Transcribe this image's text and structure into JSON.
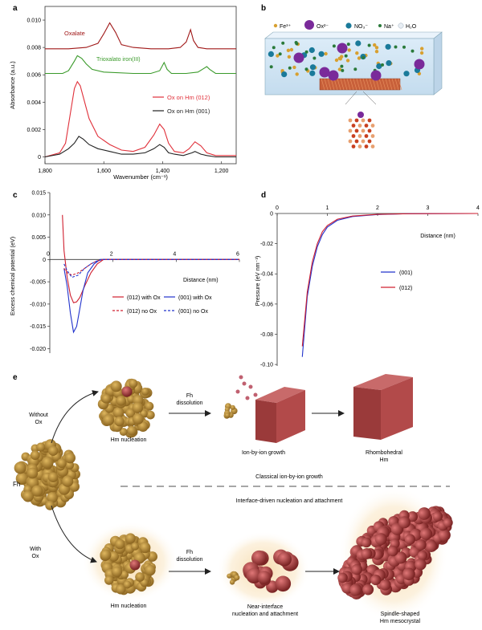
{
  "panel_labels": {
    "a": "a",
    "b": "b",
    "c": "c",
    "d": "d",
    "e": "e"
  },
  "colors": {
    "oxalate": "#a01818",
    "trioxalato": "#3a9a2a",
    "ox012": "#e0303a",
    "ox001": "#222222",
    "blue": "#2233cc",
    "red": "#d02030",
    "fh": "#b8902e",
    "hm": "#a84848",
    "water": "#d8e8f4"
  },
  "chart_data": [
    {
      "type": "line",
      "panel": "a",
      "xlabel": "Wavenumber (cm⁻¹)",
      "ylabel": "Absorbance (a.u.)",
      "xlim": [
        1800,
        1150
      ],
      "ylim": [
        -0.0005,
        0.011
      ],
      "xticks": [
        "1,800",
        "1,600",
        "1,400",
        "1,200"
      ],
      "xtick_values": [
        1800,
        1600,
        1400,
        1200
      ],
      "yticks": [
        "0",
        "0.002",
        "0.004",
        "0.006",
        "0.008",
        "0.010"
      ],
      "ytick_values": [
        0,
        0.002,
        0.004,
        0.006,
        0.008,
        0.01
      ],
      "series": [
        {
          "name": "Oxalate",
          "label": "Oxalate",
          "color": "#a01818",
          "x": [
            1800,
            1720,
            1660,
            1620,
            1600,
            1580,
            1560,
            1540,
            1500,
            1440,
            1380,
            1340,
            1320,
            1305,
            1295,
            1280,
            1250,
            1200,
            1150
          ],
          "y": [
            0.0079,
            0.0079,
            0.008,
            0.0083,
            0.009,
            0.0098,
            0.0091,
            0.0082,
            0.008,
            0.0079,
            0.0079,
            0.008,
            0.0084,
            0.0093,
            0.0085,
            0.008,
            0.0079,
            0.0079,
            0.0079
          ]
        },
        {
          "name": "Trioxalato iron(III)",
          "label": "Trioxalato iron(III)",
          "color": "#3a9a2a",
          "x": [
            1800,
            1740,
            1720,
            1700,
            1690,
            1675,
            1660,
            1640,
            1600,
            1500,
            1440,
            1410,
            1395,
            1385,
            1370,
            1320,
            1280,
            1250,
            1240,
            1220,
            1150
          ],
          "y": [
            0.0061,
            0.0061,
            0.0063,
            0.007,
            0.0074,
            0.0072,
            0.0068,
            0.0064,
            0.0062,
            0.0061,
            0.0061,
            0.0063,
            0.0069,
            0.0064,
            0.0061,
            0.0061,
            0.0062,
            0.0066,
            0.0064,
            0.0061,
            0.0061
          ]
        },
        {
          "name": "Ox on Hm (012)",
          "label": "Ox on Hm (012)",
          "color": "#e0303a",
          "x": [
            1800,
            1750,
            1730,
            1715,
            1700,
            1690,
            1680,
            1665,
            1650,
            1620,
            1580,
            1540,
            1500,
            1460,
            1430,
            1410,
            1395,
            1380,
            1360,
            1330,
            1310,
            1290,
            1270,
            1250,
            1220,
            1180,
            1150
          ],
          "y": [
            0.0,
            0.0003,
            0.001,
            0.003,
            0.005,
            0.0055,
            0.0052,
            0.004,
            0.0028,
            0.0015,
            0.0009,
            0.0005,
            0.0004,
            0.0007,
            0.0016,
            0.0024,
            0.002,
            0.001,
            0.0004,
            0.0003,
            0.0006,
            0.0011,
            0.0008,
            0.0003,
            0.0001,
            0.0001,
            0.0001
          ]
        },
        {
          "name": "Ox on Hm (001)",
          "label": "Ox on Hm (001)",
          "color": "#222222",
          "x": [
            1800,
            1750,
            1720,
            1700,
            1685,
            1670,
            1650,
            1620,
            1580,
            1540,
            1500,
            1460,
            1430,
            1410,
            1395,
            1380,
            1360,
            1330,
            1300,
            1290,
            1270,
            1250,
            1220,
            1180,
            1150
          ],
          "y": [
            0.0,
            0.0002,
            0.0006,
            0.001,
            0.0015,
            0.0013,
            0.0009,
            0.0006,
            0.0004,
            0.0002,
            0.0002,
            0.0003,
            0.0006,
            0.0009,
            0.0007,
            0.0003,
            0.0002,
            0.0001,
            0.0003,
            0.0004,
            0.0002,
            0.0001,
            0.0,
            0.0,
            0.0
          ]
        }
      ]
    },
    {
      "type": "line",
      "panel": "c",
      "xlabel": "Distance (nm)",
      "ylabel": "Excess chemical potential (eV)",
      "xlim": [
        0,
        6
      ],
      "ylim": [
        -0.021,
        0.015
      ],
      "xticks": [
        "0",
        "2",
        "4",
        "6"
      ],
      "xtick_values": [
        0,
        2,
        4,
        6
      ],
      "yticks": [
        "0.015",
        "0.010",
        "0.005",
        "0",
        "-0.005",
        "-0.010",
        "-0.015",
        "-0.020"
      ],
      "ytick_values": [
        0.015,
        0.01,
        0.005,
        0,
        -0.005,
        -0.01,
        -0.015,
        -0.02
      ],
      "series": [
        {
          "name": "(012) with Ox",
          "label": "(012) with Ox",
          "color": "#d02030",
          "dash": false,
          "x": [
            0.4,
            0.45,
            0.55,
            0.65,
            0.75,
            0.85,
            0.95,
            1.1,
            1.3,
            1.5,
            1.7,
            2.0,
            6.0
          ],
          "y": [
            0.01,
            0.002,
            -0.004,
            -0.008,
            -0.0097,
            -0.0095,
            -0.0085,
            -0.006,
            -0.003,
            -0.001,
            0,
            0,
            0
          ]
        },
        {
          "name": "(001) with Ox",
          "label": "(001) with Ox",
          "color": "#2233cc",
          "dash": false,
          "x": [
            0.45,
            0.55,
            0.65,
            0.75,
            0.85,
            0.95,
            1.05,
            1.2,
            1.4,
            1.6,
            1.8,
            2.0,
            6.0
          ],
          "y": [
            -0.002,
            -0.006,
            -0.012,
            -0.0163,
            -0.015,
            -0.011,
            -0.007,
            -0.003,
            -0.001,
            0,
            0,
            0,
            0
          ]
        },
        {
          "name": "(012) no Ox",
          "label": "(012) no Ox",
          "color": "#d02030",
          "dash": true,
          "x": [
            0.45,
            0.55,
            0.7,
            0.9,
            1.1,
            1.3,
            1.5,
            1.7,
            6.0
          ],
          "y": [
            -0.002,
            -0.003,
            -0.0035,
            -0.003,
            -0.002,
            -0.001,
            -0.0003,
            0,
            0
          ]
        },
        {
          "name": "(001) no Ox",
          "label": "(001) no Ox",
          "color": "#2233cc",
          "dash": true,
          "x": [
            0.45,
            0.55,
            0.7,
            0.9,
            1.1,
            1.3,
            1.5,
            1.7,
            6.0
          ],
          "y": [
            -0.001,
            -0.0025,
            -0.004,
            -0.0035,
            -0.002,
            -0.001,
            -0.0003,
            0,
            0
          ]
        }
      ]
    },
    {
      "type": "line",
      "panel": "d",
      "xlabel": "Distance (nm)",
      "ylabel": "Pressure (eV nm⁻³)",
      "xlim": [
        0,
        4
      ],
      "ylim": [
        -0.101,
        0.0
      ],
      "xticks": [
        "0",
        "1",
        "2",
        "3",
        "4"
      ],
      "xtick_values": [
        0,
        1,
        2,
        3,
        4
      ],
      "yticks": [
        "0",
        "-0.02",
        "-0.04",
        "-0.06",
        "-0.08",
        "-0.10"
      ],
      "ytick_values": [
        0,
        -0.02,
        -0.04,
        -0.06,
        -0.08,
        -0.1
      ],
      "series": [
        {
          "name": "(001)",
          "label": "(001)",
          "color": "#2233cc",
          "x": [
            0.5,
            0.55,
            0.6,
            0.7,
            0.8,
            0.9,
            1.0,
            1.2,
            1.5,
            2.0,
            2.5,
            3.0,
            4.0
          ],
          "y": [
            -0.095,
            -0.075,
            -0.055,
            -0.035,
            -0.022,
            -0.014,
            -0.009,
            -0.0045,
            -0.002,
            -0.0007,
            -0.0002,
            -0.0001,
            0
          ]
        },
        {
          "name": "(012)",
          "label": "(012)",
          "color": "#d02030",
          "x": [
            0.5,
            0.55,
            0.6,
            0.7,
            0.8,
            0.9,
            1.0,
            1.2,
            1.5,
            2.0,
            2.5,
            3.0,
            4.0
          ],
          "y": [
            -0.088,
            -0.07,
            -0.052,
            -0.032,
            -0.02,
            -0.012,
            -0.008,
            -0.0038,
            -0.0017,
            -0.0006,
            -0.0002,
            -0.0001,
            0
          ]
        }
      ]
    }
  ],
  "panel_b": {
    "legend": [
      "Fe³⁺",
      "Ox²⁻",
      "NO₃⁻",
      "Na⁺",
      "H₂O"
    ]
  },
  "panel_e": {
    "fh_label": "Fh",
    "without_ox": [
      "Without",
      "Ox"
    ],
    "with_ox": [
      "With",
      "Ox"
    ],
    "hm_nucleation_top": "Hm nucleation",
    "hm_nucleation_bottom": "Hm nucleation",
    "fh_dissolution_top": [
      "Fh",
      "dissolution"
    ],
    "fh_dissolution_bottom": [
      "Fh",
      "dissolution"
    ],
    "ion_growth": "Ion-by-ion growth",
    "rhombohedral": [
      "Rhombohedral",
      "Hm"
    ],
    "classical": "Classical ion-by-ion growth",
    "interface": "Interface-driven nucleation and attachment",
    "near_interface": [
      "Near-interface",
      "nucleation and attachment"
    ],
    "spindle": [
      "Spindle-shaped",
      "Hm mesocrystal"
    ]
  }
}
